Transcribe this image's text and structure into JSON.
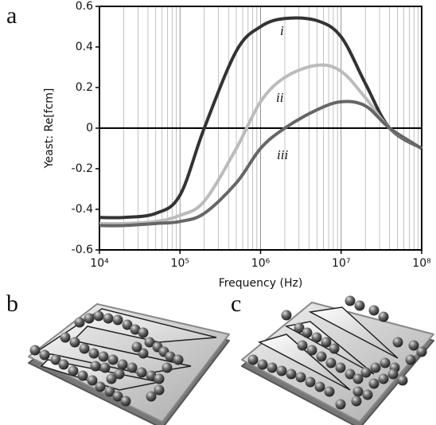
{
  "panel_labels": [
    "a",
    "b",
    "c"
  ],
  "chart_data": {
    "type": "line",
    "x_label": "Frequency (Hz)",
    "y_label": "Yeast: Re[fcm]",
    "x_log": true,
    "grid": true,
    "reference_line": 0,
    "x": [
      10000,
      20000,
      50000,
      100000,
      200000,
      500000,
      1000000,
      2000000,
      5000000,
      10000000,
      20000000,
      40000000,
      100000000
    ],
    "series": [
      {
        "name": "i",
        "color": "#333333",
        "values": [
          -0.44,
          -0.44,
          -0.42,
          -0.33,
          0.0,
          0.38,
          0.5,
          0.54,
          0.53,
          0.45,
          0.22,
          0.0,
          -0.1
        ]
      },
      {
        "name": "ii",
        "color": "#bbbbbb",
        "values": [
          -0.47,
          -0.47,
          -0.46,
          -0.43,
          -0.36,
          -0.1,
          0.13,
          0.25,
          0.31,
          0.28,
          0.15,
          0.0,
          -0.1
        ]
      },
      {
        "name": "iii",
        "color": "#666666",
        "values": [
          -0.48,
          -0.48,
          -0.47,
          -0.46,
          -0.42,
          -0.27,
          -0.1,
          0.0,
          0.09,
          0.13,
          0.11,
          0.0,
          -0.1
        ]
      }
    ],
    "xlim": [
      10000,
      100000000
    ],
    "xticks": [
      {
        "value": 10000,
        "label": "10⁴"
      },
      {
        "value": 100000,
        "label": "10⁵"
      },
      {
        "value": 1000000,
        "label": "10⁶"
      },
      {
        "value": 10000000,
        "label": "10⁷"
      },
      {
        "value": 100000000,
        "label": "10⁸"
      }
    ],
    "ylim": [
      -0.6,
      0.6
    ],
    "yticks": [
      -0.6,
      -0.4,
      -0.2,
      0,
      0.2,
      0.4,
      0.6
    ]
  }
}
